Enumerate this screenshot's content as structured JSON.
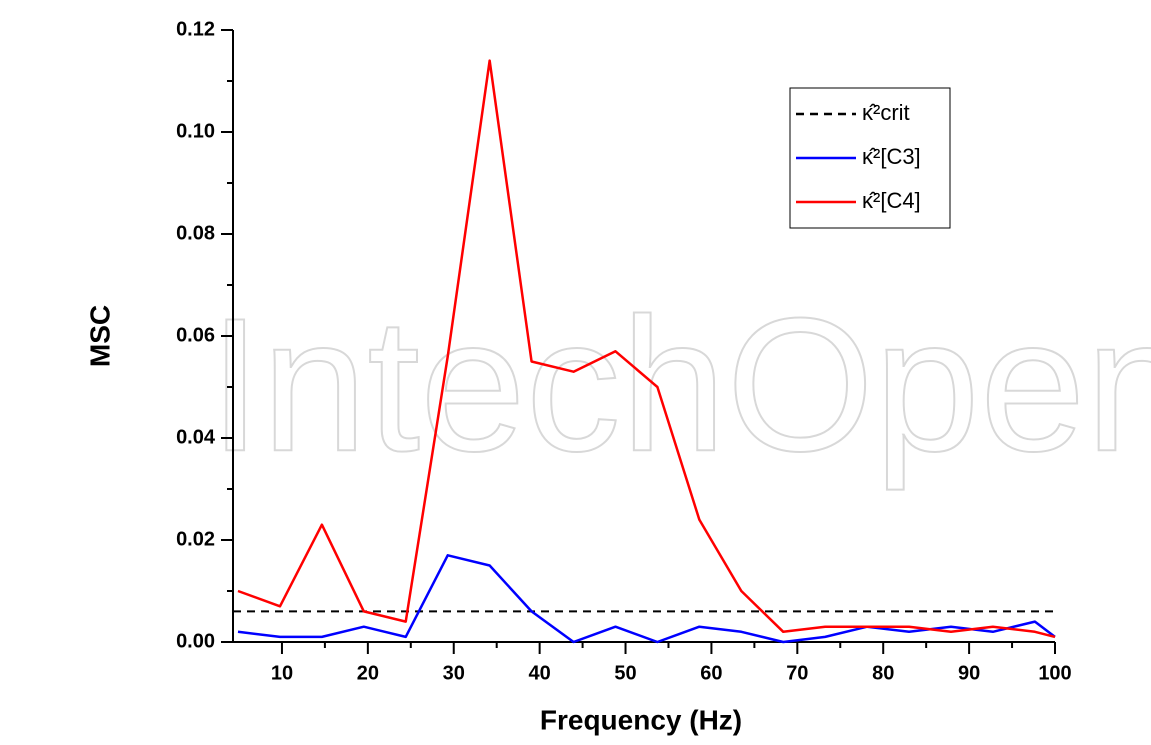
{
  "chart_data": {
    "type": "line",
    "watermark": "IntechOpen",
    "x_label": "Frequency (Hz)",
    "y_label": "MSC",
    "x": [
      4.88,
      9.77,
      14.65,
      19.53,
      24.41,
      29.3,
      34.18,
      39.06,
      43.95,
      48.83,
      53.71,
      58.59,
      63.48,
      68.36,
      73.24,
      78.13,
      83.01,
      87.89,
      92.77,
      97.66,
      100
    ],
    "threshold": {
      "name": "κ̂²crit",
      "value": 0.006,
      "color": "#000000"
    },
    "series": [
      {
        "name": "κ̂²[C3]",
        "color": "#0000ff",
        "values": [
          0.002,
          0.001,
          0.001,
          0.003,
          0.001,
          0.017,
          0.015,
          0.006,
          0.0,
          0.003,
          0.0,
          0.003,
          0.002,
          0.0,
          0.001,
          0.003,
          0.002,
          0.003,
          0.002,
          0.004,
          0.001
        ]
      },
      {
        "name": "κ̂²[C4]",
        "color": "#ff0000",
        "values": [
          0.01,
          0.007,
          0.023,
          0.006,
          0.004,
          0.056,
          0.114,
          0.055,
          0.053,
          0.057,
          0.05,
          0.024,
          0.01,
          0.002,
          0.003,
          0.003,
          0.003,
          0.002,
          0.003,
          0.002,
          0.001
        ]
      }
    ],
    "xlim": [
      4.3,
      100
    ],
    "ylim": [
      0,
      0.12
    ],
    "xticks": [
      10,
      20,
      30,
      40,
      50,
      60,
      70,
      80,
      90,
      100
    ],
    "yticks": [
      {
        "value": 0,
        "label": "0.00"
      },
      {
        "value": 0.02,
        "label": "0.02"
      },
      {
        "value": 0.04,
        "label": "0.04"
      },
      {
        "value": 0.06,
        "label": "0.06"
      },
      {
        "value": 0.08,
        "label": "0.08"
      },
      {
        "value": 0.1,
        "label": "0.10"
      },
      {
        "value": 0.12,
        "label": "0.12"
      }
    ],
    "legend": "upper-right"
  }
}
